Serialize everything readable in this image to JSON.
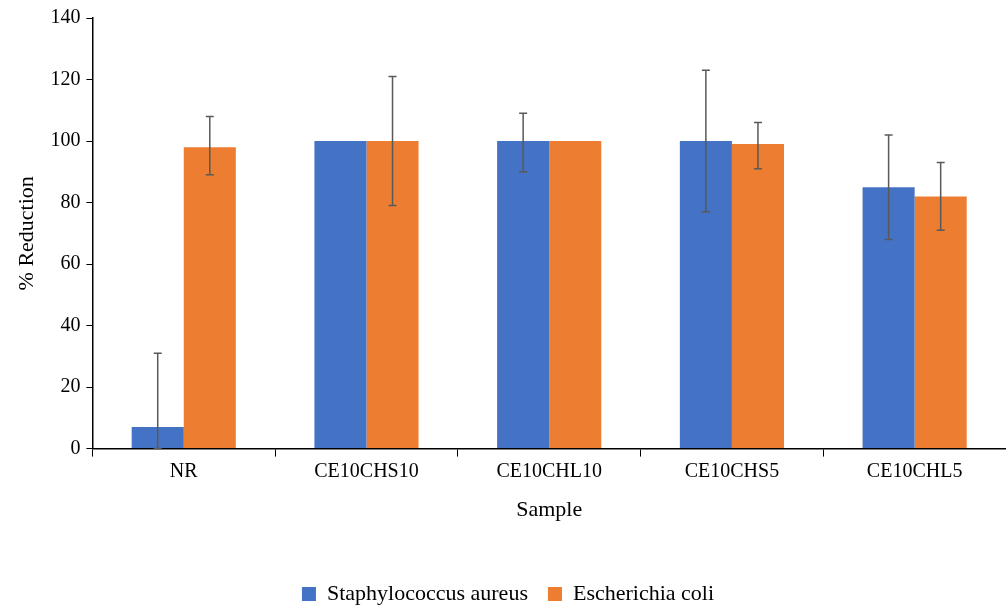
{
  "chart_data": {
    "type": "bar",
    "xlabel": "Sample",
    "ylabel": "% Reduction",
    "categories": [
      "NR",
      "CE10CHS10",
      "CE10CHL10",
      "CE10CHS5",
      "CE10CHL5"
    ],
    "series": [
      {
        "name": "Staphylococcus aureus",
        "color": "#4472c4",
        "values": [
          7,
          100,
          100,
          100,
          85
        ],
        "errors": [
          [
            0,
            31
          ],
          null,
          [
            90,
            109
          ],
          [
            77,
            123
          ],
          [
            68,
            102
          ]
        ]
      },
      {
        "name": "Escherichia coli",
        "color": "#ed7d31",
        "values": [
          98,
          100,
          100,
          99,
          82
        ],
        "errors": [
          [
            89,
            108
          ],
          [
            79,
            121
          ],
          null,
          [
            91,
            106
          ],
          [
            71,
            93
          ]
        ]
      }
    ],
    "ylim": [
      0,
      140
    ],
    "yticks": [
      0,
      20,
      40,
      60,
      80,
      100,
      120,
      140
    ],
    "grid": false,
    "legend": "bottom"
  }
}
